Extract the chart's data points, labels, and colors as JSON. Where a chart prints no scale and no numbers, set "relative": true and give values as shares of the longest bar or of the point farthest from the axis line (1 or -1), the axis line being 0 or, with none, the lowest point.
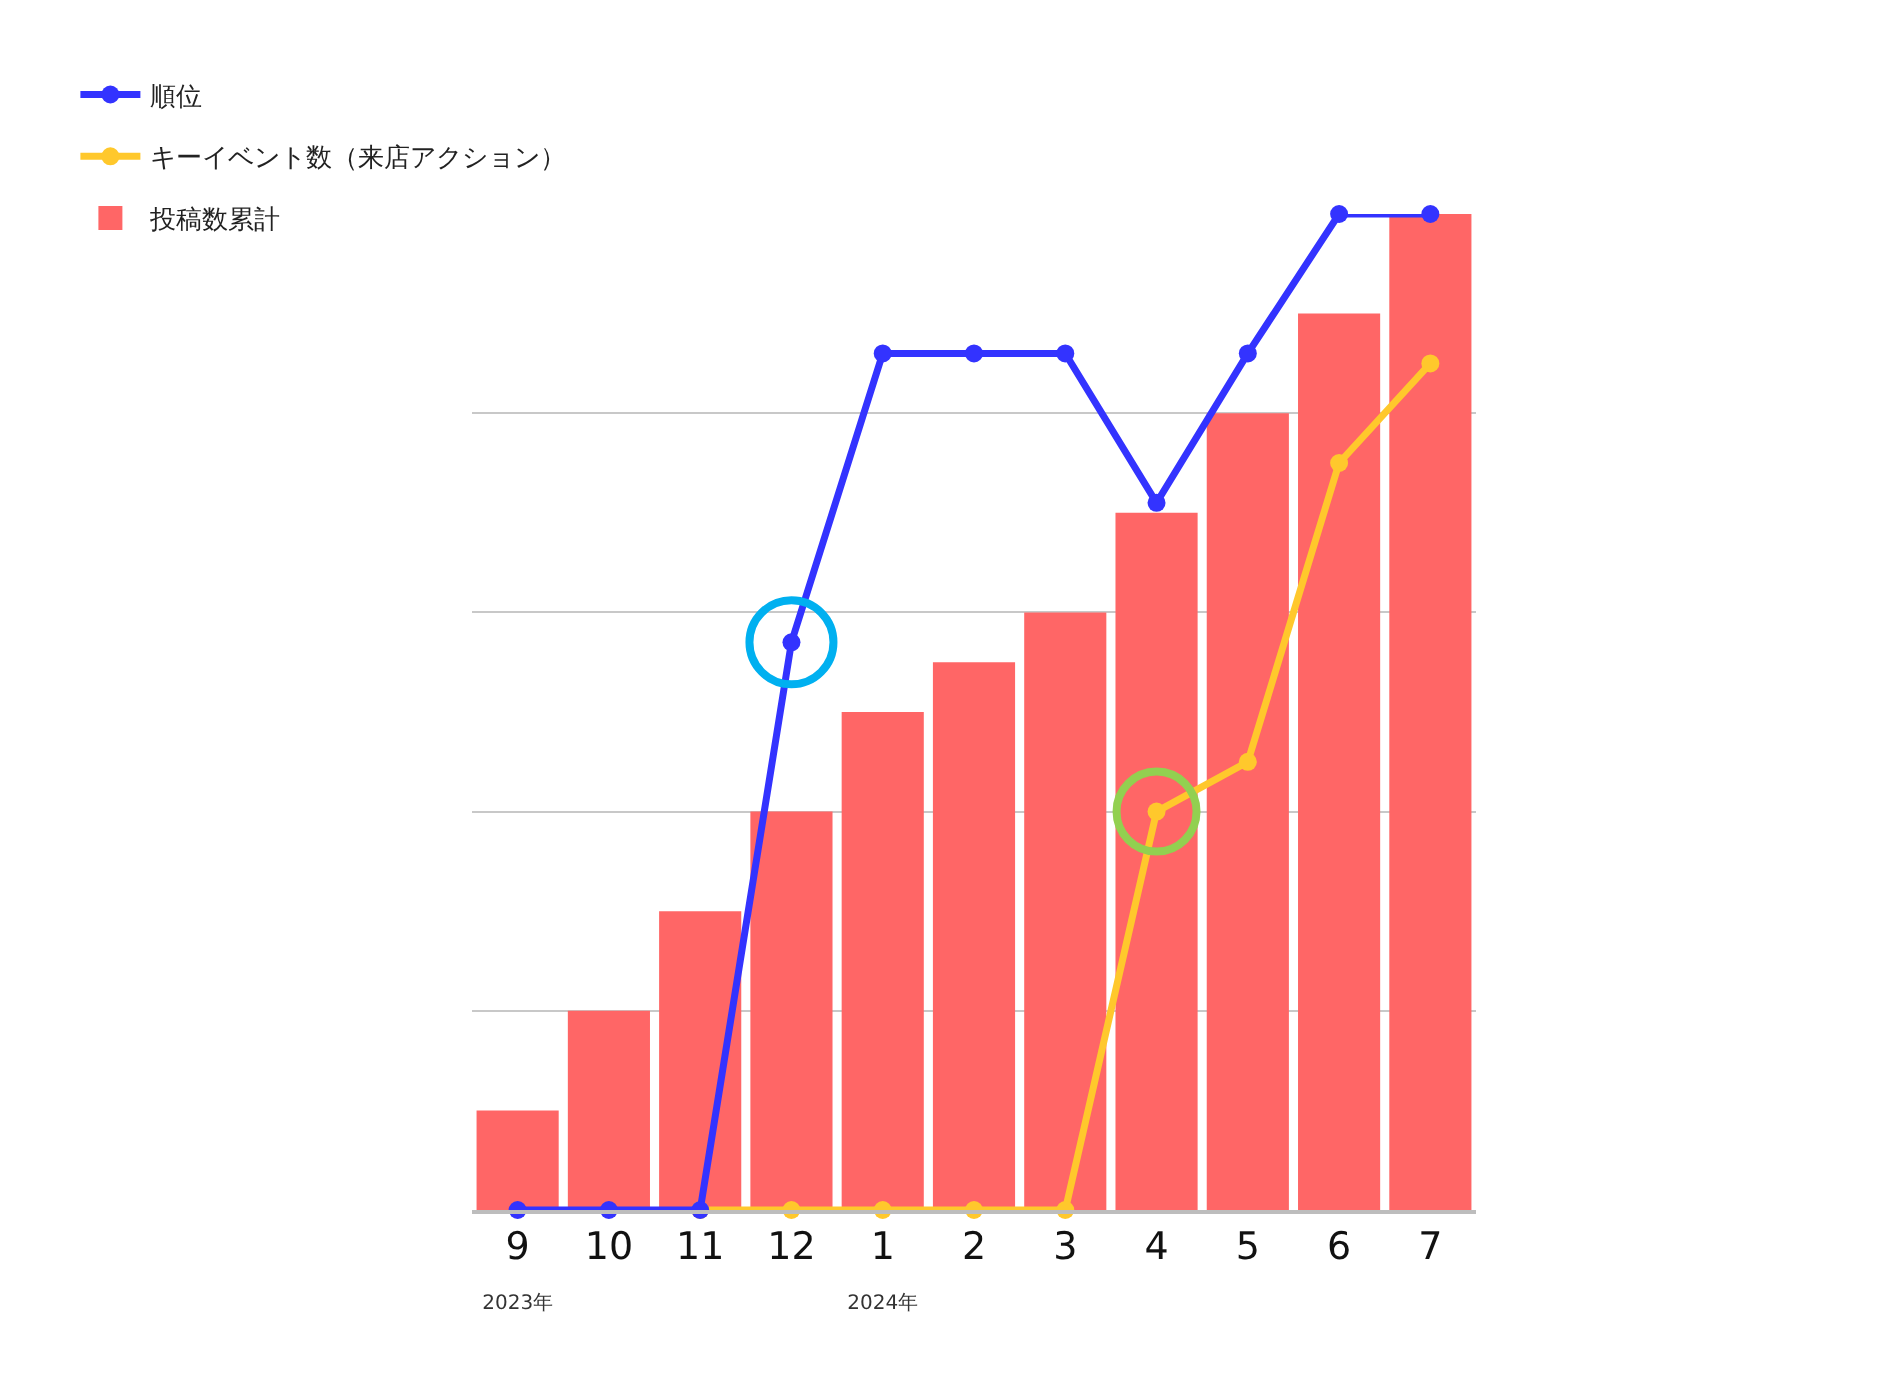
{
  "chart_data": {
    "type": "bar",
    "relative": true,
    "categories": [
      "9\n2023年",
      "10",
      "11",
      "12",
      "1\n2024年",
      "2",
      "3",
      "4",
      "5",
      "6",
      "7"
    ],
    "series": [
      {
        "name": "順位",
        "type": "line",
        "color": "#3333ff",
        "values": [
          0,
          0,
          0,
          0.57,
          0.86,
          0.86,
          0.86,
          0.71,
          0.86,
          1,
          1
        ]
      },
      {
        "name": "キーイベント数（来店アクション）",
        "type": "line",
        "color": "#ffc82c",
        "values": [
          null,
          null,
          0,
          0,
          0,
          0,
          0,
          0.4,
          0.45,
          0.75,
          0.85
        ]
      },
      {
        "name": "投稿数累計",
        "color": "#ff6666",
        "values": [
          0.1,
          0.2,
          0.3,
          0.4,
          0.5,
          0.55,
          0.6,
          0.7,
          0.8,
          0.9,
          1
        ]
      }
    ],
    "marker": "circle",
    "grid": "y",
    "legend": "top left"
  }
}
